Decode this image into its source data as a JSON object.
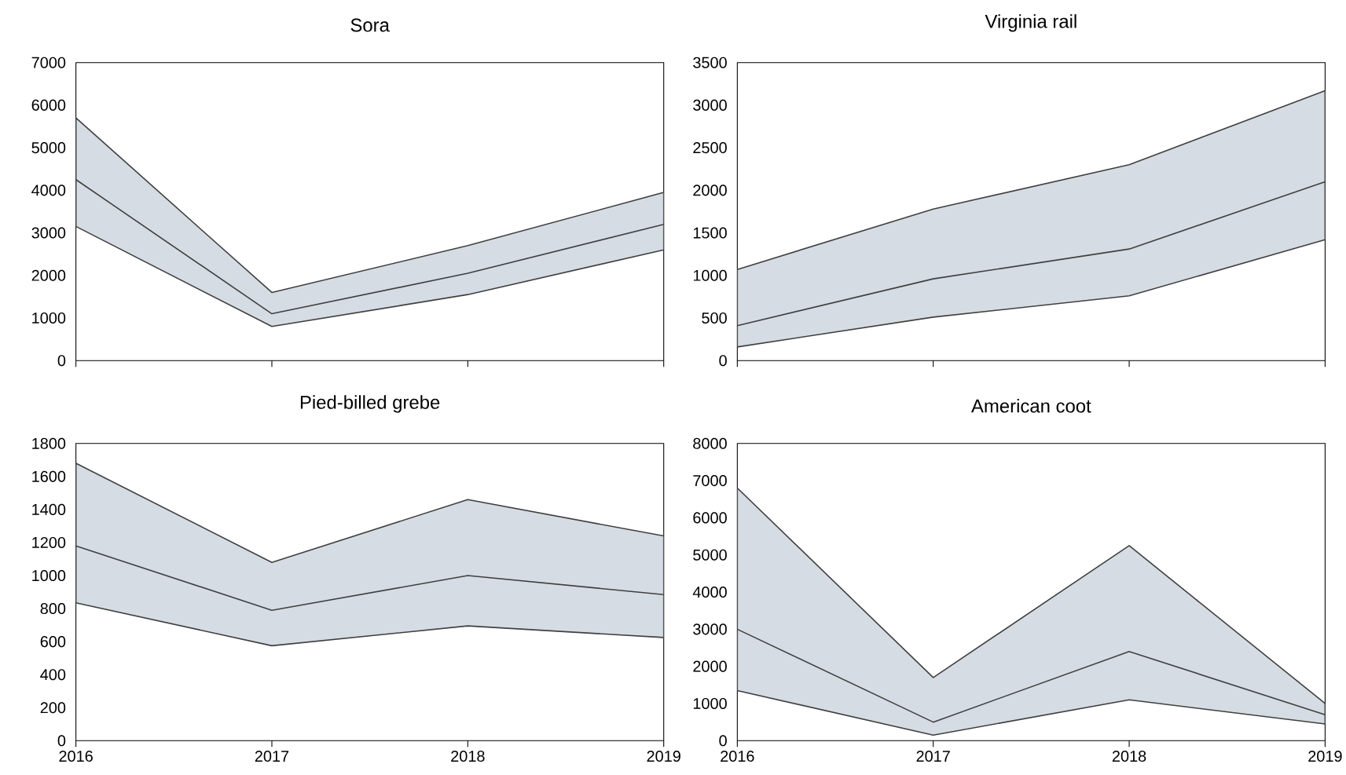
{
  "chart_data": [
    {
      "type": "line",
      "title": "Sora",
      "x": [
        2016,
        2017,
        2018,
        2019
      ],
      "xlim": [
        2016,
        2019
      ],
      "xticks": [
        2016,
        2017,
        2018,
        2019
      ],
      "ylim": [
        0,
        7000
      ],
      "yticks": [
        0,
        1000,
        2000,
        3000,
        4000,
        5000,
        6000,
        7000
      ],
      "tick_labels": "y",
      "series": [
        {
          "color": "#404040",
          "values": [
            4250,
            1100,
            2050,
            3200
          ],
          "lower": [
            3150,
            800,
            1550,
            2600
          ],
          "upper": [
            5700,
            1600,
            2700,
            3950
          ]
        }
      ]
    },
    {
      "type": "line",
      "title": "Virginia rail",
      "x": [
        2016,
        2017,
        2018,
        2019
      ],
      "xlim": [
        2016,
        2019
      ],
      "xticks": [
        2016,
        2017,
        2018,
        2019
      ],
      "ylim": [
        0,
        3500
      ],
      "yticks": [
        0,
        500,
        1000,
        1500,
        2000,
        2500,
        3000,
        3500
      ],
      "tick_labels": "y",
      "series": [
        {
          "color": "#404040",
          "values": [
            410,
            960,
            1310,
            2100
          ],
          "lower": [
            160,
            510,
            760,
            1420
          ],
          "upper": [
            1070,
            1780,
            2300,
            3170
          ]
        }
      ]
    },
    {
      "type": "line",
      "title": "Pied-billed grebe",
      "x": [
        2016,
        2017,
        2018,
        2019
      ],
      "xlim": [
        2016,
        2019
      ],
      "xticks": [
        2016,
        2017,
        2018,
        2019
      ],
      "ylim": [
        0,
        1800
      ],
      "yticks": [
        0,
        200,
        400,
        600,
        800,
        1000,
        1200,
        1400,
        1600,
        1800
      ],
      "series": [
        {
          "color": "#404040",
          "values": [
            1180,
            790,
            1000,
            885
          ],
          "lower": [
            835,
            575,
            695,
            625
          ],
          "upper": [
            1680,
            1080,
            1460,
            1240
          ]
        }
      ]
    },
    {
      "type": "line",
      "title": "American coot",
      "x": [
        2016,
        2017,
        2018,
        2019
      ],
      "xlim": [
        2016,
        2019
      ],
      "xticks": [
        2016,
        2017,
        2018,
        2019
      ],
      "ylim": [
        0,
        8000
      ],
      "yticks": [
        0,
        1000,
        2000,
        3000,
        4000,
        5000,
        6000,
        7000,
        8000
      ],
      "series": [
        {
          "color": "#404040",
          "values": [
            3000,
            500,
            2400,
            700
          ],
          "lower": [
            1350,
            150,
            1100,
            450
          ],
          "upper": [
            6800,
            1700,
            5250,
            1000
          ]
        }
      ]
    }
  ]
}
